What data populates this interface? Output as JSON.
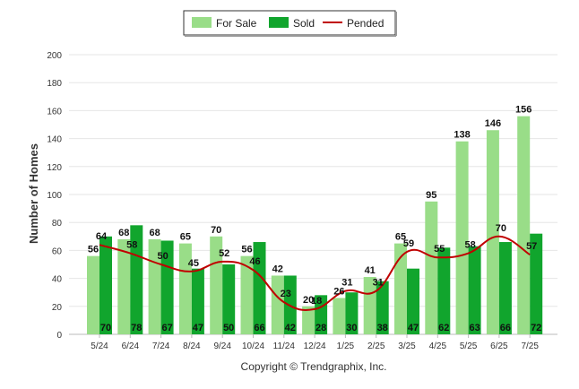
{
  "chart_data": {
    "type": "bar",
    "categories": [
      "5/24",
      "6/24",
      "7/24",
      "8/24",
      "9/24",
      "10/24",
      "11/24",
      "12/24",
      "1/25",
      "2/25",
      "3/25",
      "4/25",
      "5/25",
      "6/25",
      "7/25"
    ],
    "series": [
      {
        "name": "For Sale",
        "kind": "bar",
        "color": "#99dd88",
        "values": [
          56,
          68,
          68,
          65,
          70,
          56,
          42,
          20,
          26,
          41,
          65,
          95,
          138,
          146,
          156
        ]
      },
      {
        "name": "Sold",
        "kind": "bar",
        "color": "#11a52d",
        "values": [
          70,
          78,
          67,
          47,
          50,
          66,
          42,
          28,
          30,
          38,
          47,
          62,
          63,
          66,
          72
        ]
      },
      {
        "name": "Pended",
        "kind": "line",
        "color": "#c00000",
        "values": [
          64,
          58,
          50,
          45,
          52,
          46,
          23,
          18,
          31,
          31,
          59,
          55,
          58,
          70,
          57
        ]
      }
    ],
    "ylabel": "Number of Homes",
    "xlabel": "",
    "ylim": [
      0,
      200
    ],
    "yticks": [
      0,
      20,
      40,
      60,
      80,
      100,
      120,
      140,
      160,
      180,
      200
    ],
    "grid": true,
    "legend_position": "top-center"
  },
  "footer": {
    "copyright": "Copyright © Trendgraphix, Inc."
  }
}
